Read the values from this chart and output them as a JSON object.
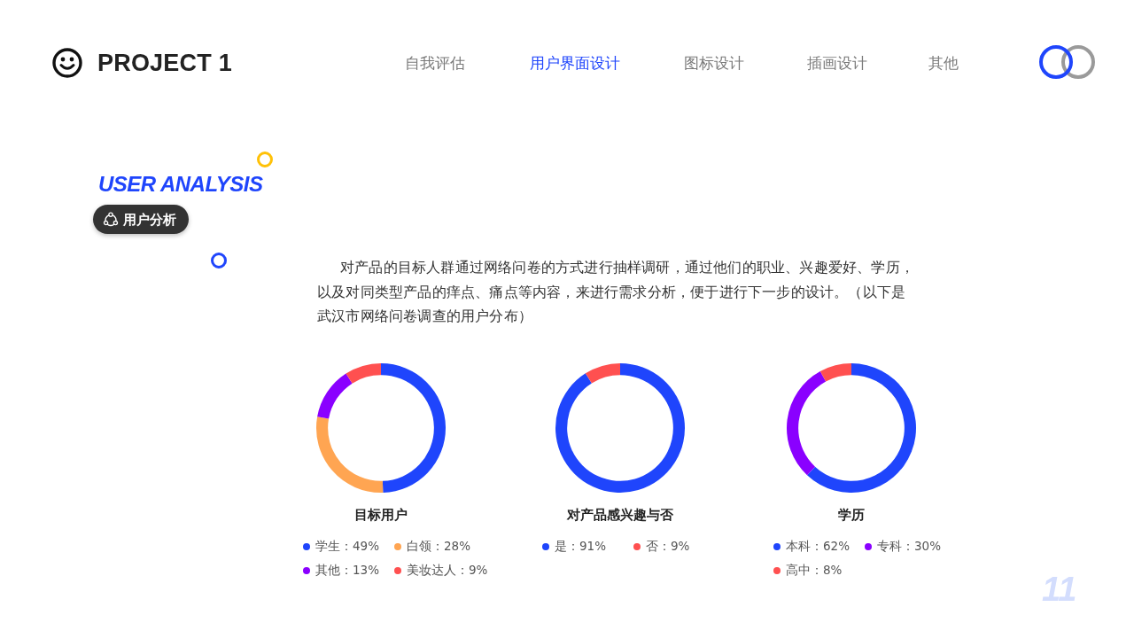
{
  "chart_data": [
    {
      "type": "other",
      "title": "PROJECT 1",
      "subtitle": "对产品的目标人群通过网络问卷的方式进行抽样调研，通过他们的职业、兴趣爱好、学历，以及对同类型产品的痒点、痛点等内容，来进行需求分析，便于进行下一步的设计。（以下是武汉市网络问卷调查的用户分布）",
      "annotations": [
        "自我评估",
        "用户界面设计",
        "图标设计",
        "插画设计",
        "其他",
        "USER ANALYSIS",
        "用户分析",
        "11"
      ]
    },
    {
      "type": "donut",
      "title": "目标用户",
      "categories": [
        "学生",
        "白领",
        "其他",
        "美妆达人"
      ],
      "values": [
        49,
        28,
        13,
        9
      ],
      "value_labels": [
        "49%",
        "28%",
        "13%",
        "9%"
      ],
      "colors": [
        "#1f45fc",
        "#ffa552",
        "#8a00ff",
        "#ff5050"
      ],
      "legend": "bottom"
    },
    {
      "type": "donut",
      "title": "对产品感兴趣与否",
      "categories": [
        "是",
        "否"
      ],
      "values": [
        91,
        9
      ],
      "value_labels": [
        "91%",
        "9%"
      ],
      "colors": [
        "#1f45fc",
        "#ff5050"
      ],
      "legend": "bottom"
    },
    {
      "type": "donut",
      "title": "学历",
      "categories": [
        "本科",
        "专科",
        "高中"
      ],
      "values": [
        62,
        30,
        8
      ],
      "value_labels": [
        "62%",
        "30%",
        "8%"
      ],
      "colors": [
        "#1f45fc",
        "#8a00ff",
        "#ff5050"
      ],
      "legend": "bottom"
    }
  ]
}
